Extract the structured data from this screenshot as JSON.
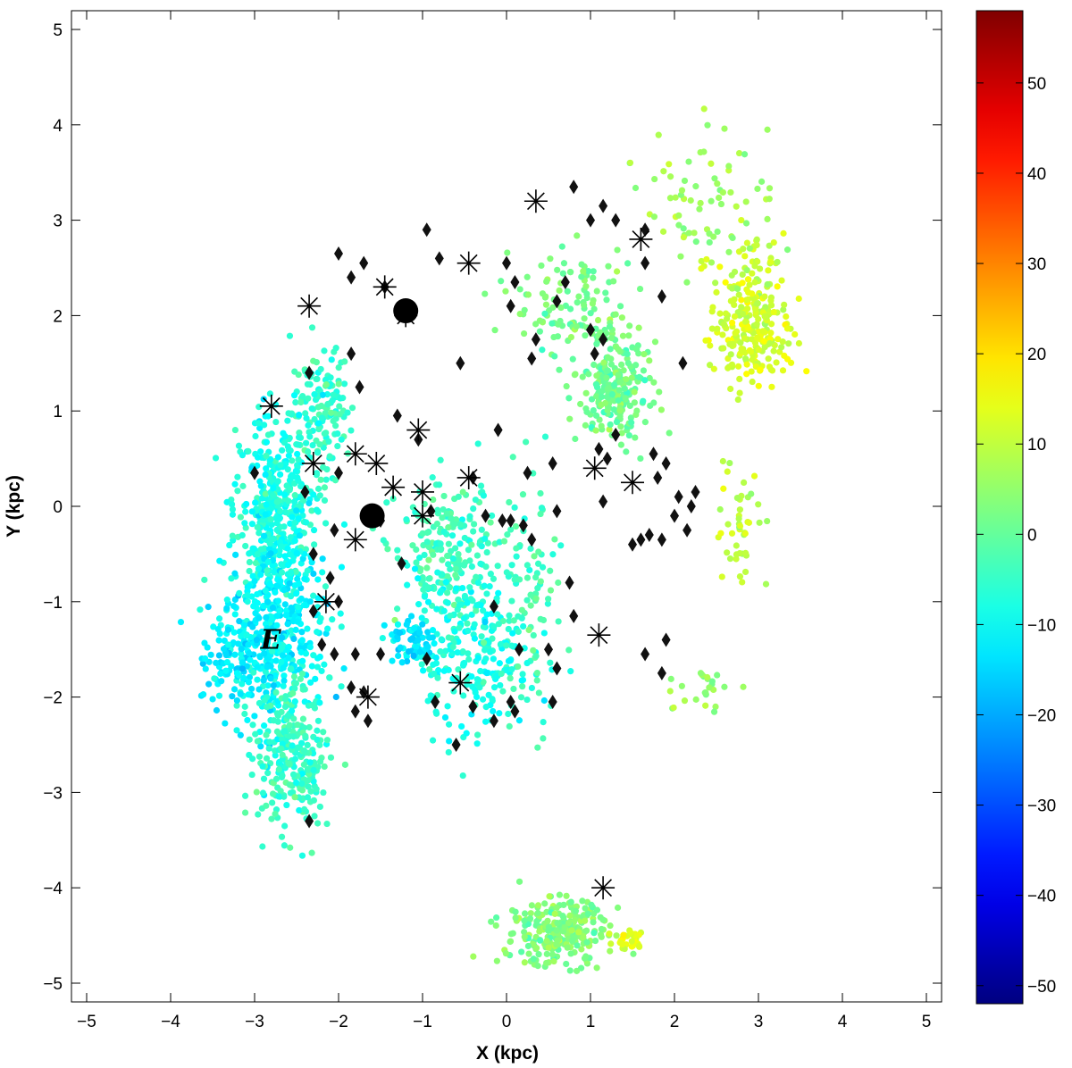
{
  "chart_data": {
    "type": "scatter",
    "title": "",
    "xlabel": "X (kpc)",
    "ylabel": "Y (kpc)",
    "xlim": [
      -5.2,
      5.2
    ],
    "ylim": [
      -5.2,
      5.2
    ],
    "xticks": [
      "−5",
      "−4",
      "−3",
      "−2",
      "−1",
      "0",
      "1",
      "2",
      "3",
      "4",
      "5"
    ],
    "yticks": [
      "−5",
      "−4",
      "−3",
      "−2",
      "−1",
      "0",
      "1",
      "2",
      "3",
      "4",
      "5"
    ],
    "grid": false,
    "colorbar": {
      "colormap": "jet",
      "range": [
        -52,
        58
      ],
      "ticks": [
        "−50",
        "−40",
        "−30",
        "−20",
        "−10",
        "0",
        "10",
        "20",
        "30",
        "40",
        "50"
      ]
    },
    "annotation": {
      "text": "E",
      "x": -2.8,
      "y": -1.4
    },
    "point_clouds": [
      {
        "name": "arm-E-upper",
        "cx": -2.2,
        "cy": 1.0,
        "sx": 0.18,
        "sy": 0.35,
        "n": 140,
        "value": -5
      },
      {
        "name": "arm-E-mid",
        "cx": -2.75,
        "cy": 0.0,
        "sx": 0.25,
        "sy": 0.5,
        "n": 380,
        "value": -8
      },
      {
        "name": "arm-E-low",
        "cx": -2.75,
        "cy": -1.3,
        "sx": 0.3,
        "sy": 0.55,
        "n": 420,
        "value": -11
      },
      {
        "name": "arm-E-tail",
        "cx": -2.55,
        "cy": -2.6,
        "sx": 0.22,
        "sy": 0.4,
        "n": 260,
        "value": -5
      },
      {
        "name": "arm-E-wing",
        "cx": -3.2,
        "cy": -1.6,
        "sx": 0.25,
        "sy": 0.25,
        "n": 90,
        "value": -13
      },
      {
        "name": "center-upper",
        "cx": -0.7,
        "cy": -0.5,
        "sx": 0.3,
        "sy": 0.35,
        "n": 200,
        "value": -4
      },
      {
        "name": "center-lower",
        "cx": -0.4,
        "cy": -1.5,
        "sx": 0.35,
        "sy": 0.45,
        "n": 260,
        "value": -8
      },
      {
        "name": "center-blob",
        "cx": -1.1,
        "cy": -1.4,
        "sx": 0.15,
        "sy": 0.12,
        "n": 60,
        "value": -14
      },
      {
        "name": "center-edge",
        "cx": 0.3,
        "cy": -0.9,
        "sx": 0.2,
        "sy": 0.6,
        "n": 90,
        "value": -3
      },
      {
        "name": "arm-NE-main",
        "cx": 1.3,
        "cy": 1.2,
        "sx": 0.2,
        "sy": 0.25,
        "n": 210,
        "value": 1
      },
      {
        "name": "arm-NE-upper",
        "cx": 0.8,
        "cy": 2.1,
        "sx": 0.35,
        "sy": 0.35,
        "n": 130,
        "value": 2
      },
      {
        "name": "far-right-upper",
        "cx": 2.85,
        "cy": 2.1,
        "sx": 0.22,
        "sy": 0.35,
        "n": 170,
        "value": 11
      },
      {
        "name": "far-right-mid",
        "cx": 3.0,
        "cy": 1.7,
        "sx": 0.25,
        "sy": 0.2,
        "n": 90,
        "value": 13
      },
      {
        "name": "far-right-top",
        "cx": 2.4,
        "cy": 3.3,
        "sx": 0.4,
        "sy": 0.35,
        "n": 70,
        "value": 6
      },
      {
        "name": "far-right-low",
        "cx": 2.8,
        "cy": -0.3,
        "sx": 0.15,
        "sy": 0.4,
        "n": 45,
        "value": 10
      },
      {
        "name": "south-cluster",
        "cx": 0.6,
        "cy": -4.45,
        "sx": 0.3,
        "sy": 0.18,
        "n": 260,
        "value": 3
      },
      {
        "name": "south-yellow",
        "cx": 1.45,
        "cy": -4.55,
        "sx": 0.12,
        "sy": 0.08,
        "n": 30,
        "value": 14
      },
      {
        "name": "southeast-streak",
        "cx": 2.4,
        "cy": -1.9,
        "sx": 0.25,
        "sy": 0.1,
        "n": 25,
        "value": 5
      }
    ],
    "series": [
      {
        "name": "",
        "marker": "diamond",
        "points": [
          [
            -3.0,
            0.35
          ],
          [
            -2.35,
            1.4
          ],
          [
            -2.4,
            0.15
          ],
          [
            -2.3,
            -0.5
          ],
          [
            -2.3,
            -1.1
          ],
          [
            -2.2,
            -1.45
          ],
          [
            -2.05,
            -1.55
          ],
          [
            -2.0,
            -1.0
          ],
          [
            -2.1,
            -0.75
          ],
          [
            -2.05,
            -0.25
          ],
          [
            -2.0,
            0.35
          ],
          [
            -1.85,
            1.6
          ],
          [
            -1.75,
            1.25
          ],
          [
            -2.0,
            2.65
          ],
          [
            -1.85,
            2.4
          ],
          [
            -1.7,
            2.55
          ],
          [
            -1.45,
            2.3
          ],
          [
            -0.95,
            2.9
          ],
          [
            -0.8,
            2.6
          ],
          [
            -1.3,
            0.95
          ],
          [
            -1.05,
            0.7
          ],
          [
            -0.9,
            -0.05
          ],
          [
            -1.25,
            -0.6
          ],
          [
            -1.5,
            -0.15
          ],
          [
            -1.6,
            -0.1
          ],
          [
            -1.5,
            -1.55
          ],
          [
            -1.8,
            -1.55
          ],
          [
            -1.85,
            -1.9
          ],
          [
            -1.8,
            -2.15
          ],
          [
            -1.65,
            -2.25
          ],
          [
            -1.7,
            -1.95
          ],
          [
            -0.95,
            -1.6
          ],
          [
            -0.85,
            -2.05
          ],
          [
            -0.6,
            -2.5
          ],
          [
            -0.4,
            -2.1
          ],
          [
            -0.15,
            -2.25
          ],
          [
            0.05,
            -2.05
          ],
          [
            0.1,
            -2.15
          ],
          [
            -0.15,
            -1.05
          ],
          [
            0.15,
            -1.5
          ],
          [
            0.5,
            -1.5
          ],
          [
            0.55,
            -2.05
          ],
          [
            0.6,
            -1.7
          ],
          [
            0.3,
            -0.35
          ],
          [
            0.2,
            -0.2
          ],
          [
            0.05,
            -0.15
          ],
          [
            -0.05,
            -0.15
          ],
          [
            -0.25,
            -0.1
          ],
          [
            0.25,
            0.35
          ],
          [
            0.55,
            0.45
          ],
          [
            0.6,
            -0.05
          ],
          [
            -0.1,
            0.8
          ],
          [
            -0.4,
            0.3
          ],
          [
            -0.55,
            1.5
          ],
          [
            0.0,
            2.55
          ],
          [
            0.05,
            2.1
          ],
          [
            0.1,
            2.35
          ],
          [
            0.3,
            1.55
          ],
          [
            0.35,
            1.75
          ],
          [
            0.6,
            2.15
          ],
          [
            0.7,
            2.35
          ],
          [
            0.8,
            3.35
          ],
          [
            1.0,
            3.0
          ],
          [
            1.15,
            3.15
          ],
          [
            1.05,
            1.6
          ],
          [
            1.0,
            1.85
          ],
          [
            1.15,
            1.75
          ],
          [
            1.3,
            0.75
          ],
          [
            1.1,
            0.6
          ],
          [
            1.2,
            0.5
          ],
          [
            1.15,
            0.05
          ],
          [
            1.5,
            -0.4
          ],
          [
            1.6,
            -0.35
          ],
          [
            1.7,
            -0.3
          ],
          [
            1.8,
            0.3
          ],
          [
            1.75,
            0.55
          ],
          [
            1.9,
            0.45
          ],
          [
            1.85,
            -0.35
          ],
          [
            2.0,
            -0.1
          ],
          [
            2.05,
            0.1
          ],
          [
            2.15,
            -0.25
          ],
          [
            2.2,
            0.0
          ],
          [
            2.25,
            0.15
          ],
          [
            1.65,
            2.55
          ],
          [
            1.65,
            2.9
          ],
          [
            1.85,
            2.2
          ],
          [
            2.1,
            1.5
          ],
          [
            1.3,
            3.0
          ],
          [
            0.75,
            -0.8
          ],
          [
            0.8,
            -1.15
          ],
          [
            1.65,
            -1.55
          ],
          [
            1.9,
            -1.4
          ],
          [
            1.85,
            -1.75
          ],
          [
            -2.35,
            -3.3
          ]
        ]
      },
      {
        "name": "",
        "marker": "asterisk",
        "points": [
          [
            0.35,
            3.2
          ],
          [
            1.6,
            2.8
          ],
          [
            -0.45,
            2.55
          ],
          [
            -1.45,
            2.3
          ],
          [
            -2.35,
            2.1
          ],
          [
            -1.2,
            2.0
          ],
          [
            -2.8,
            1.05
          ],
          [
            -1.05,
            0.8
          ],
          [
            -2.3,
            0.45
          ],
          [
            -1.8,
            0.55
          ],
          [
            -1.55,
            0.45
          ],
          [
            -1.35,
            0.2
          ],
          [
            -1.0,
            0.15
          ],
          [
            -0.45,
            0.3
          ],
          [
            1.05,
            0.4
          ],
          [
            1.5,
            0.25
          ],
          [
            -1.0,
            -0.1
          ],
          [
            -1.8,
            -0.35
          ],
          [
            -2.15,
            -1.0
          ],
          [
            1.1,
            -1.35
          ],
          [
            -0.55,
            -1.85
          ],
          [
            -1.65,
            -2.0
          ],
          [
            1.15,
            -4.0
          ]
        ]
      },
      {
        "name": "",
        "marker": "circle",
        "points": [
          [
            -1.6,
            -0.1
          ],
          [
            -1.2,
            2.05
          ]
        ]
      }
    ]
  }
}
